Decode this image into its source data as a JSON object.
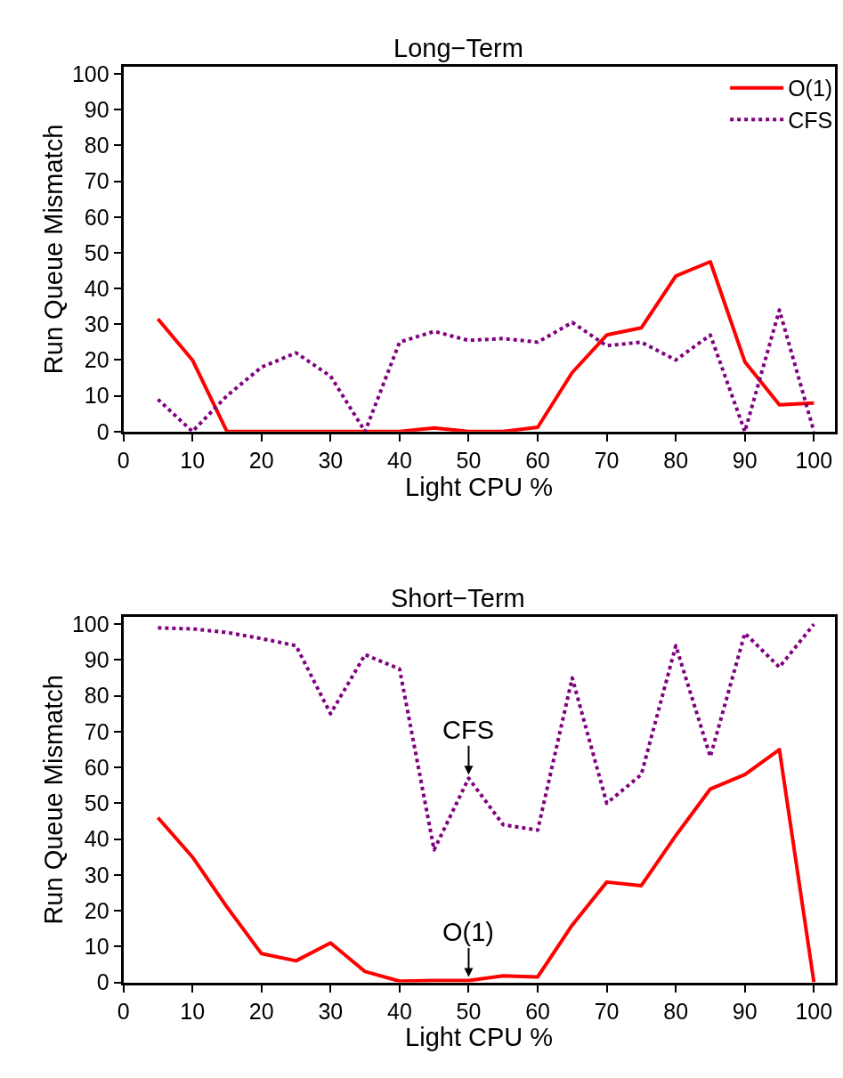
{
  "chart_data": [
    {
      "type": "line",
      "title": "Long−Term",
      "xlabel": "Light CPU %",
      "ylabel": "Run Queue Mismatch",
      "x": [
        5,
        10,
        15,
        20,
        25,
        30,
        35,
        40,
        45,
        50,
        55,
        60,
        65,
        70,
        75,
        80,
        85,
        90,
        95,
        100
      ],
      "series": [
        {
          "name": "O(1)",
          "color": "#ff0000",
          "line_style": "solid",
          "values": [
            31.5,
            20,
            0,
            0,
            0,
            0,
            0,
            0,
            1,
            0,
            0,
            1.2,
            16.5,
            27,
            29,
            43.5,
            47.5,
            19.5,
            7.5,
            8
          ]
        },
        {
          "name": "CFS",
          "color": "#800080",
          "line_style": "dotted",
          "values": [
            9,
            0,
            10,
            18,
            22,
            15.5,
            0,
            25,
            28,
            25.5,
            26,
            25,
            30.5,
            24,
            25,
            20,
            27,
            0,
            34,
            0
          ]
        }
      ],
      "xlim": [
        0,
        103
      ],
      "ylim": [
        0,
        102
      ],
      "xticks": [
        0,
        10,
        20,
        30,
        40,
        50,
        60,
        70,
        80,
        90,
        100
      ],
      "yticks": [
        0,
        10,
        20,
        30,
        40,
        50,
        60,
        70,
        80,
        90,
        100
      ],
      "legend": "top right",
      "marker": "none"
    },
    {
      "type": "line",
      "title": "Short−Term",
      "xlabel": "Light CPU %",
      "ylabel": "Run Queue Mismatch",
      "x": [
        5,
        10,
        15,
        20,
        25,
        30,
        35,
        40,
        45,
        50,
        55,
        60,
        65,
        70,
        75,
        80,
        85,
        90,
        95,
        100
      ],
      "series": [
        {
          "color": "#ff0000",
          "line_style": "solid",
          "values": [
            46,
            35,
            21,
            8,
            6,
            11,
            3,
            0.3,
            0.5,
            0.5,
            1.8,
            1.5,
            16,
            28,
            27,
            41,
            54,
            58,
            65,
            0
          ]
        },
        {
          "color": "#800080",
          "line_style": "dotted",
          "values": [
            99,
            98.7,
            97.7,
            96,
            94,
            75,
            91.5,
            87.5,
            37,
            57,
            44,
            42.5,
            85,
            50,
            58,
            94,
            63,
            97.5,
            88,
            100
          ]
        }
      ],
      "annotations": [
        {
          "text": "CFS",
          "x": 50,
          "y": 57
        },
        {
          "text": "O(1)",
          "x": 50,
          "y": 0.5
        }
      ],
      "xlim": [
        0,
        103
      ],
      "ylim": [
        0,
        102
      ],
      "xticks": [
        0,
        10,
        20,
        30,
        40,
        50,
        60,
        70,
        80,
        90,
        100
      ],
      "yticks": [
        0,
        10,
        20,
        30,
        40,
        50,
        60,
        70,
        80,
        90,
        100
      ],
      "legend": false,
      "marker": "none"
    }
  ]
}
